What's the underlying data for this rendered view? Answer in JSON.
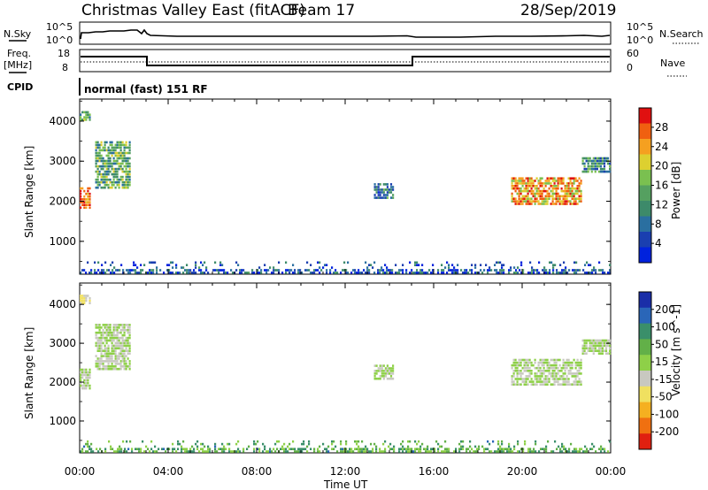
{
  "header": {
    "site": "Christmas Valley East (fitACF)",
    "beam": "Beam 17",
    "date": "28/Sep/2019"
  },
  "strips": {
    "nsky_label": "N.Sky",
    "nsky_ticks": [
      "10^5",
      "10^0"
    ],
    "nsearch_label": "N.Search",
    "nsearch_ticks": [
      "10^5",
      "10^0"
    ],
    "freq_label_1": "Freq.",
    "freq_label_2": "[MHz]",
    "freq_ticks": [
      "18",
      "8"
    ],
    "nave_label": "Nave",
    "nave_ticks": [
      "60",
      "0"
    ],
    "cpid_label": "CPID",
    "cpid_text": "normal (fast) 151 RF"
  },
  "axes": {
    "xlabel": "Time UT",
    "xticks": [
      "00:00",
      "04:00",
      "08:00",
      "12:00",
      "16:00",
      "20:00",
      "00:00"
    ],
    "ylabel": "Slant Range [km]",
    "yticks": [
      "4000",
      "3000",
      "2000",
      "1000"
    ]
  },
  "power_scale": {
    "label": "Power [dB]",
    "ticks": [
      "28",
      "24",
      "20",
      "16",
      "12",
      "8",
      "4"
    ],
    "colors": [
      "#0022dd",
      "#1a3fb0",
      "#2a6fa0",
      "#3d8a6a",
      "#55a060",
      "#7ac050",
      "#ddd030",
      "#f5a020",
      "#f06010",
      "#e01010"
    ]
  },
  "velocity_scale": {
    "label": "Velocity [m s^-1]",
    "ticks": [
      "200",
      "100",
      "50",
      "15",
      "-15",
      "-50",
      "-100",
      "-200"
    ],
    "colors": [
      "#1a2ea8",
      "#2a66b8",
      "#3a8f6a",
      "#62b048",
      "#8ed048",
      "#c8c8c0",
      "#f0e060",
      "#f5b020",
      "#f07010",
      "#e02010"
    ]
  },
  "chart_data": [
    {
      "type": "heatmap",
      "title": "Power",
      "xlabel": "Time UT",
      "ylabel": "Slant Range [km]",
      "colorbar_label": "Power [dB]",
      "x_range_hours": [
        0,
        24
      ],
      "ylim": [
        180,
        4550
      ],
      "zlim": [
        0,
        32
      ],
      "echo_regions": [
        {
          "t0": 0.0,
          "t1": 0.5,
          "r0": 1800,
          "r1": 2350,
          "value": 28
        },
        {
          "t0": 0.0,
          "t1": 0.5,
          "r0": 4000,
          "r1": 4250,
          "value": 14
        },
        {
          "t0": 0.7,
          "t1": 2.3,
          "r0": 2300,
          "r1": 3500,
          "value": 14
        },
        {
          "t0": 13.3,
          "t1": 14.2,
          "r0": 2050,
          "r1": 2450,
          "value": 10
        },
        {
          "t0": 19.5,
          "t1": 22.7,
          "r0": 1900,
          "r1": 2600,
          "value": 24
        },
        {
          "t0": 22.7,
          "t1": 24.0,
          "r0": 2700,
          "r1": 3100,
          "value": 12
        },
        {
          "t0": 0.0,
          "t1": 24.0,
          "r0": 180,
          "r1": 500,
          "value": 6
        }
      ]
    },
    {
      "type": "heatmap",
      "title": "Velocity",
      "xlabel": "Time UT",
      "ylabel": "Slant Range [km]",
      "colorbar_label": "Velocity [m s^-1]",
      "x_range_hours": [
        0,
        24
      ],
      "ylim": [
        180,
        4550
      ],
      "zlim": [
        -200,
        200
      ],
      "echo_regions": [
        {
          "t0": 0.0,
          "t1": 0.5,
          "r0": 1800,
          "r1": 2350,
          "value": 0
        },
        {
          "t0": 0.0,
          "t1": 0.5,
          "r0": 4000,
          "r1": 4250,
          "value": -40
        },
        {
          "t0": 0.7,
          "t1": 2.3,
          "r0": 2300,
          "r1": 3500,
          "value": 0
        },
        {
          "t0": 13.3,
          "t1": 14.2,
          "r0": 2050,
          "r1": 2450,
          "value": 0
        },
        {
          "t0": 19.5,
          "t1": 22.7,
          "r0": 1900,
          "r1": 2600,
          "value": 0
        },
        {
          "t0": 22.7,
          "t1": 24.0,
          "r0": 2700,
          "r1": 3100,
          "value": 0
        },
        {
          "t0": 0.0,
          "t1": 24.0,
          "r0": 180,
          "r1": 500,
          "value": 40
        }
      ]
    }
  ]
}
